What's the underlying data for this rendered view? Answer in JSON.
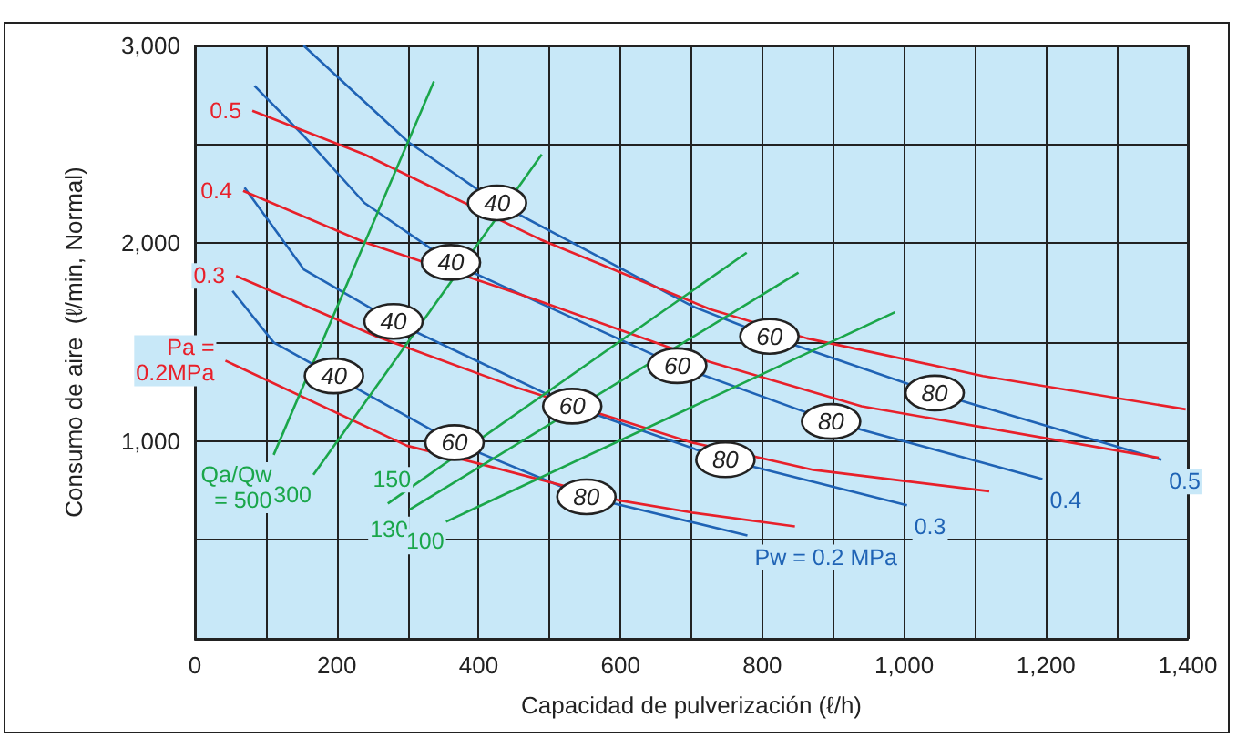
{
  "chart_data": {
    "type": "line",
    "xlabel": "Capacidad de pulverización (ℓ/h)",
    "ylabel": "Consumo de aire  (ℓ/min, Normal)",
    "xlim": [
      0,
      1400
    ],
    "ylim": [
      0,
      3000
    ],
    "xticks": [
      0,
      {
        "value": 100,
        "label": null
      },
      200,
      {
        "value": 300,
        "label": null
      },
      400,
      {
        "value": 500,
        "label": null
      },
      600,
      {
        "value": 700,
        "label": null
      },
      800,
      {
        "value": 900,
        "label": null
      },
      {
        "value": 1000,
        "label": "1,000"
      },
      {
        "value": 1100,
        "label": null
      },
      {
        "value": 1200,
        "label": "1,200"
      },
      {
        "value": 1300,
        "label": null
      },
      {
        "value": 1400,
        "label": "1,400"
      }
    ],
    "yticks": [
      {
        "value": 0,
        "label": null
      },
      {
        "value": 500,
        "label": null
      },
      {
        "value": 1000,
        "label": "1,000"
      },
      {
        "value": 1500,
        "label": null
      },
      {
        "value": 2000,
        "label": "2,000"
      },
      {
        "value": 2500,
        "label": null
      },
      {
        "value": 3000,
        "label": "3,000"
      }
    ],
    "grid": true,
    "series": [
      {
        "color": "#1f63b5",
        "x": [
          153,
          301,
          426,
          701,
          810,
          1043,
          1363
        ],
        "values": [
          3000,
          2511,
          2204,
          1682,
          1529,
          1243,
          905
        ]
      },
      {
        "color": "#1f63b5",
        "x": [
          84,
          154,
          239,
          361,
          680,
          897,
          1195
        ],
        "values": [
          2796,
          2541,
          2204,
          1903,
          1381,
          1099,
          808
        ]
      },
      {
        "color": "#1f63b5",
        "x": [
          70,
          154,
          280,
          532,
          748,
          1004
        ],
        "values": [
          2281,
          1866,
          1605,
          1176,
          905,
          675
        ]
      },
      {
        "color": "#1f63b5",
        "x": [
          53,
          111,
          196,
          366,
          552,
          779
        ],
        "values": [
          1759,
          1498,
          1329,
          992,
          718,
          522
        ]
      },
      {
        "color": "#e8202a",
        "x": [
          81,
          239,
          487,
          726,
          863,
          1111,
          1397
        ],
        "values": [
          2670,
          2449,
          2019,
          1667,
          1519,
          1329,
          1160
        ]
      },
      {
        "color": "#e8202a",
        "x": [
          68,
          239,
          470,
          726,
          940,
          1359
        ],
        "values": [
          2265,
          2005,
          1728,
          1400,
          1176,
          915
        ]
      },
      {
        "color": "#e8202a",
        "x": [
          58,
          256,
          450,
          701,
          872,
          1120
        ],
        "values": [
          1835,
          1529,
          1275,
          992,
          854,
          746
        ]
      },
      {
        "color": "#e8202a",
        "x": [
          43,
          299,
          402,
          598,
          701,
          846
        ],
        "values": [
          1406,
          976,
          884,
          700,
          638,
          568
        ]
      },
      {
        "color": "#1aa64a",
        "x": [
          111,
          337
        ],
        "values": [
          930,
          2818
        ]
      },
      {
        "color": "#1aa64a",
        "x": [
          167,
          489
        ],
        "values": [
          829,
          2449
        ]
      },
      {
        "color": "#1aa64a",
        "x": [
          272,
          778
        ],
        "values": [
          684,
          1952
        ]
      },
      {
        "color": "#1aa64a",
        "x": [
          303,
          851
        ],
        "values": [
          654,
          1851
        ]
      },
      {
        "color": "#1aa64a",
        "x": [
          354,
          987
        ],
        "values": [
          592,
          1651
        ]
      }
    ],
    "annotations": [
      {
        "text": "0.5",
        "x": 81,
        "y": 2670
      },
      {
        "text": "0.4",
        "x": 68,
        "y": 2265
      },
      {
        "text": "0.3",
        "x": 58,
        "y": 1835
      },
      {
        "text": "Pa =\n0.2MPa",
        "x": 43,
        "y": 1406
      },
      {
        "text": "0.5",
        "x": 1363,
        "y": 905
      },
      {
        "text": "0.4",
        "x": 1195,
        "y": 808
      },
      {
        "text": "0.3",
        "x": 1004,
        "y": 675
      },
      {
        "text": "Pw = 0.2 MPa",
        "x": 779,
        "y": 522
      },
      {
        "text": "Qa/Qw\n= 500",
        "x": 111,
        "y": 930
      },
      {
        "text": "300",
        "x": 167,
        "y": 829
      },
      {
        "text": "150",
        "x": 320,
        "y": 804
      },
      {
        "text": "130",
        "x": 303,
        "y": 654
      },
      {
        "text": "100",
        "x": 354,
        "y": 592
      },
      {
        "text": "40",
        "x": 426,
        "y": 2204
      },
      {
        "text": "60",
        "x": 810,
        "y": 1529
      },
      {
        "text": "80",
        "x": 1043,
        "y": 1243
      },
      {
        "text": "40",
        "x": 361,
        "y": 1903
      },
      {
        "text": "60",
        "x": 680,
        "y": 1381
      },
      {
        "text": "80",
        "x": 897,
        "y": 1099
      },
      {
        "text": "40",
        "x": 280,
        "y": 1605
      },
      {
        "text": "60",
        "x": 532,
        "y": 1176
      },
      {
        "text": "80",
        "x": 748,
        "y": 905
      },
      {
        "text": "40",
        "x": 196,
        "y": 1329
      },
      {
        "text": "60",
        "x": 366,
        "y": 992
      },
      {
        "text": "80",
        "x": 552,
        "y": 718
      }
    ]
  }
}
